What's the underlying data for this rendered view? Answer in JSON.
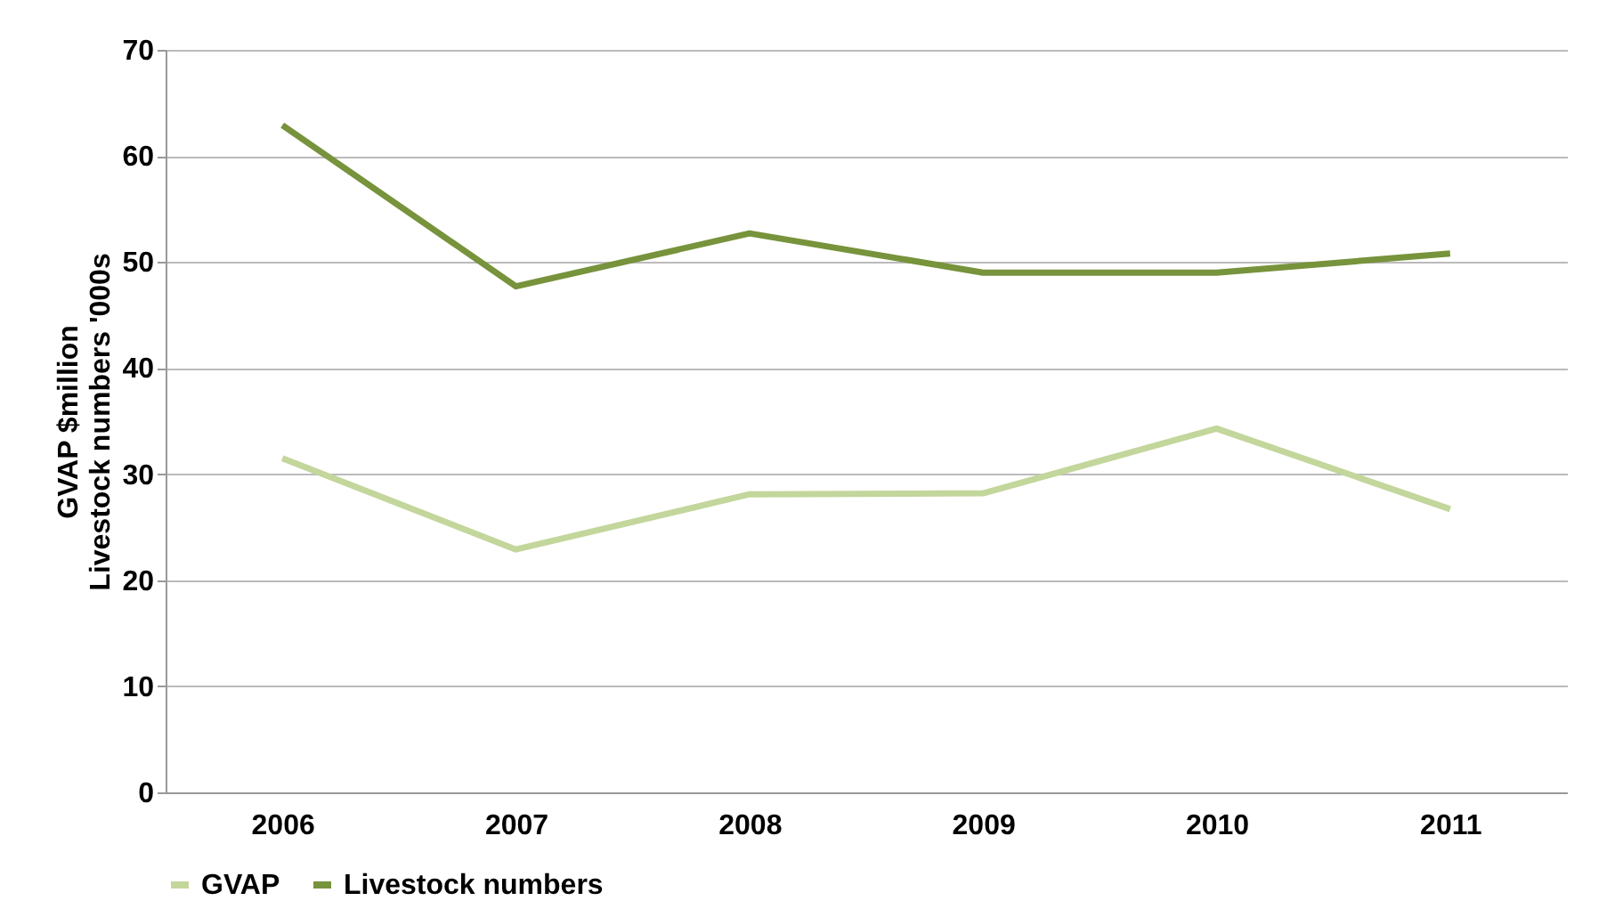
{
  "chart_data": {
    "type": "line",
    "ylabel": "GVAP $million\nLivestock numbers '000s",
    "categories": [
      "2006",
      "2007",
      "2008",
      "2009",
      "2010",
      "2011"
    ],
    "series": [
      {
        "name": "GVAP",
        "color": "#c3d69b",
        "values": [
          31.5,
          22.9,
          28.1,
          28.2,
          34.3,
          26.7
        ]
      },
      {
        "name": "Livestock numbers",
        "color": "#77933c",
        "values": [
          62.9,
          47.7,
          52.7,
          49.0,
          49.0,
          50.8
        ]
      }
    ],
    "ylim": [
      0,
      70
    ],
    "yticks": [
      0,
      10,
      20,
      30,
      40,
      50,
      60,
      70
    ],
    "grid": "y",
    "legend": "bottom",
    "marker": "none",
    "line_style": "solid"
  }
}
